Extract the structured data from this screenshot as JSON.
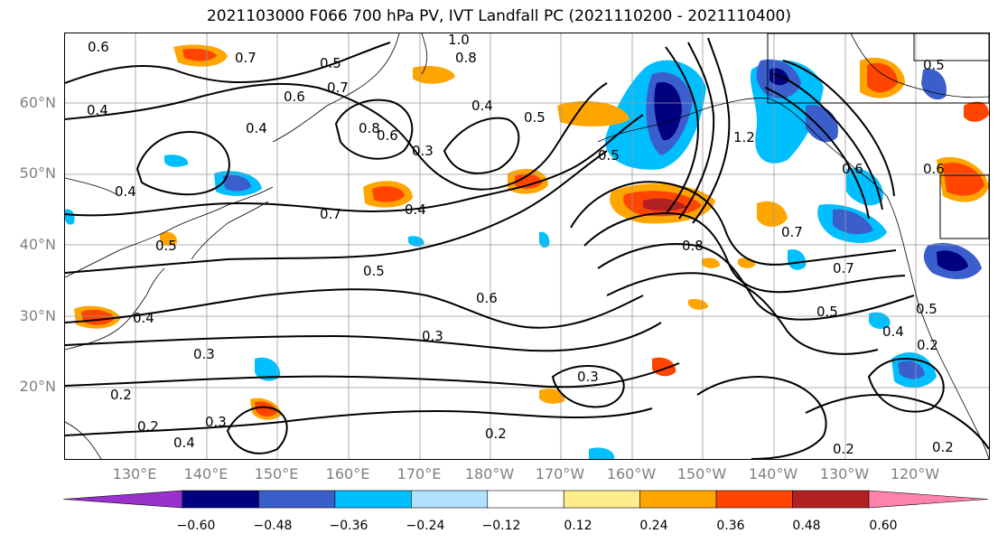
{
  "title": "2021103000 F066 700 hPa PV, IVT Landfall PC (2021110200 - 2021110400)",
  "map": {
    "lat_labels": [
      "60°N",
      "50°N",
      "40°N",
      "30°N",
      "20°N"
    ],
    "lon_labels": [
      "130°E",
      "140°E",
      "150°E",
      "160°E",
      "170°E",
      "180°W",
      "170°W",
      "160°W",
      "150°W",
      "140°W",
      "130°W",
      "120°W"
    ],
    "contour_labels": [
      "0.6",
      "0.7",
      "0.5",
      "1.0",
      "0.8",
      "0.4",
      "0.6",
      "0.7",
      "0.4",
      "0.8",
      "0.6",
      "0.3",
      "0.4",
      "0.5",
      "0.5",
      "1.2",
      "0.6",
      "0.5",
      "0.4",
      "0.7",
      "0.4",
      "0.5",
      "0.8",
      "0.7",
      "0.7",
      "0.5",
      "0.6",
      "0.4",
      "0.3",
      "0.3",
      "0.3",
      "0.2",
      "0.2",
      "0.3",
      "0.4",
      "0.2",
      "0.5",
      "0.4",
      "0.2",
      "0.2",
      "0.2",
      "0.6",
      "0.5"
    ]
  },
  "colorbar": {
    "tick_labels": [
      "−0.60",
      "−0.48",
      "−0.36",
      "−0.24",
      "−0.12",
      "0.12",
      "0.24",
      "0.36",
      "0.48",
      "0.60"
    ],
    "colors": [
      "#9932cc",
      "#000080",
      "#3a5fcd",
      "#00bfff",
      "#b0e2ff",
      "#ffffff",
      "#ffec8b",
      "#ffa500",
      "#ff4500",
      "#b22222",
      "#ff82ab"
    ]
  }
}
